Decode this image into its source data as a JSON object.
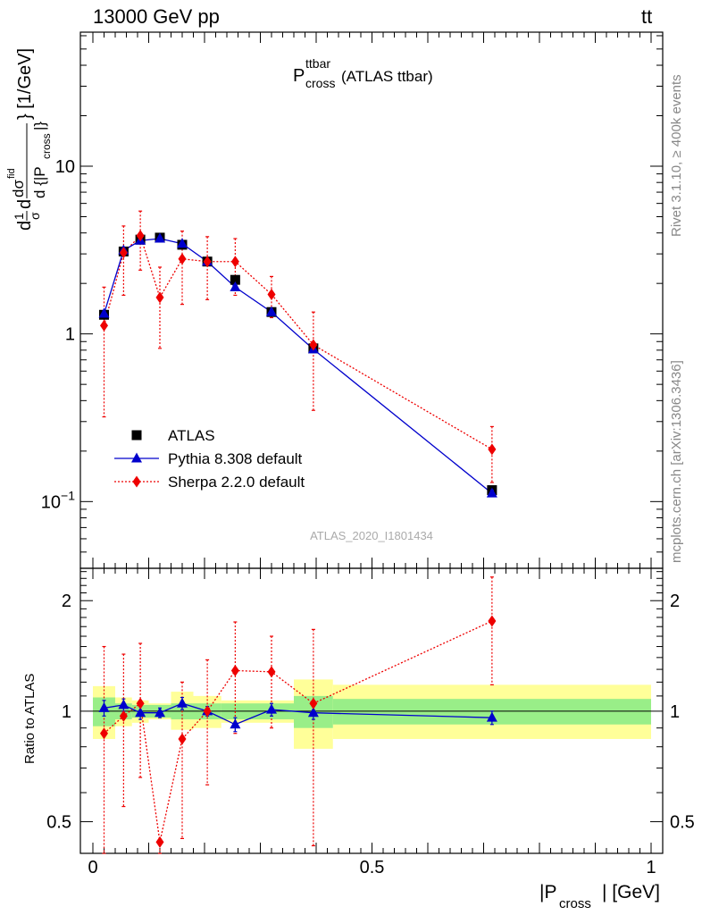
{
  "header": {
    "energy": "13000 GeV pp",
    "process_main": "tt",
    "process_bar": "¯"
  },
  "side_labels": {
    "rivet": "Rivet 3.1.10, ≥ 400k events",
    "mcplots": "mcplots.cern.ch [arXiv:1306.3436]"
  },
  "plot_title": {
    "main": "P",
    "sup": "ttbar",
    "sub": "cross",
    "rest": " (ATLAS ttbar)"
  },
  "watermark": "ATLAS_2020_I1801434",
  "axis_labels": {
    "x_main": "|P",
    "x_sub": "cross",
    "x_rest": "| [GeV]",
    "y_main_left": "d",
    "y_frac_1": "1",
    "y_frac_sigma": "σ",
    "y_d": "d",
    "y_dsigma": "dσ",
    "y_fid": "fid",
    "y_denom": "d {|P",
    "y_denom_sub": "cross",
    "y_denom_close": "|}",
    "y_unit": "} [1/GeV]",
    "y_ratio": "Ratio to ATLAS"
  },
  "chart_data": [
    {
      "type": "line",
      "panel": "main",
      "yscale": "log",
      "xlim": [
        -0.02,
        1.0
      ],
      "ylim": [
        0.04,
        63
      ],
      "x_ticks": [
        0,
        0.5,
        1
      ],
      "y_ticks": [
        {
          "value": 0.1,
          "base": "10",
          "exp": "−1"
        },
        {
          "value": 1,
          "label": "1"
        },
        {
          "value": 10,
          "label": "10"
        }
      ],
      "legend_position": "lower-left",
      "series": [
        {
          "name": "ATLAS",
          "color": "#000000",
          "marker": "square",
          "x": [
            0.02,
            0.055,
            0.085,
            0.12,
            0.16,
            0.205,
            0.255,
            0.32,
            0.395,
            0.715
          ],
          "y": [
            1.3,
            3.1,
            3.65,
            3.75,
            3.4,
            2.7,
            2.1,
            1.35,
            0.82,
            0.117
          ]
        },
        {
          "name": "Pythia 8.308 default",
          "color": "#0000cc",
          "marker": "triangle",
          "line": "solid",
          "x": [
            0.02,
            0.055,
            0.085,
            0.12,
            0.16,
            0.205,
            0.255,
            0.32,
            0.395,
            0.715
          ],
          "y": [
            1.32,
            3.15,
            3.6,
            3.7,
            3.45,
            2.7,
            1.9,
            1.35,
            0.81,
            0.112
          ],
          "err_low": [
            0.05,
            0.1,
            0.1,
            0.1,
            0.1,
            0.08,
            0.07,
            0.05,
            0.03,
            0.005
          ],
          "err_high": [
            0.05,
            0.1,
            0.1,
            0.1,
            0.1,
            0.08,
            0.07,
            0.05,
            0.03,
            0.005
          ]
        },
        {
          "name": "Sherpa 2.2.0 default",
          "color": "#ee0000",
          "marker": "diamond",
          "line": "dotted",
          "x": [
            0.02,
            0.055,
            0.085,
            0.12,
            0.16,
            0.205,
            0.255,
            0.32,
            0.395,
            0.715
          ],
          "y": [
            1.12,
            3.05,
            3.85,
            1.65,
            2.8,
            2.7,
            2.7,
            1.72,
            0.86,
            0.205
          ],
          "y_low": [
            0.32,
            1.7,
            2.4,
            0.82,
            1.5,
            1.6,
            1.7,
            1.25,
            0.35,
            0.13
          ],
          "y_high": [
            1.9,
            4.4,
            5.4,
            2.5,
            4.1,
            3.8,
            3.7,
            2.2,
            1.35,
            0.28
          ]
        }
      ]
    },
    {
      "type": "line",
      "panel": "ratio",
      "yscale": "log",
      "xlim": [
        -0.02,
        1.0
      ],
      "ylim": [
        0.41,
        2.45
      ],
      "x_ticks": [
        0,
        0.5,
        1
      ],
      "y_ticks": [
        0.5,
        1,
        2
      ],
      "bands": {
        "edges": [
          0,
          0.04,
          0.07,
          0.1,
          0.14,
          0.18,
          0.23,
          0.28,
          0.36,
          0.43,
          1.0
        ],
        "green_low": [
          0.91,
          0.95,
          0.96,
          0.96,
          0.95,
          0.95,
          0.95,
          0.95,
          0.9,
          0.92
        ],
        "green_high": [
          1.09,
          1.05,
          1.04,
          1.04,
          1.05,
          1.05,
          1.05,
          1.05,
          1.1,
          1.08
        ],
        "yellow_low": [
          0.84,
          0.91,
          0.93,
          0.95,
          0.89,
          0.9,
          0.93,
          0.93,
          0.79,
          0.84
        ],
        "yellow_high": [
          1.17,
          1.09,
          1.07,
          1.05,
          1.13,
          1.1,
          1.07,
          1.07,
          1.22,
          1.18
        ]
      },
      "series": [
        {
          "name": "Pythia 8.308 default",
          "color": "#0000cc",
          "marker": "triangle",
          "line": "solid",
          "x": [
            0.02,
            0.055,
            0.085,
            0.12,
            0.16,
            0.205,
            0.255,
            0.32,
            0.395,
            0.715
          ],
          "y": [
            1.02,
            1.04,
            0.99,
            0.99,
            1.05,
            1.0,
            0.92,
            1.01,
            0.99,
            0.96
          ],
          "err": [
            0.05,
            0.04,
            0.04,
            0.03,
            0.04,
            0.03,
            0.04,
            0.04,
            0.04,
            0.04
          ]
        },
        {
          "name": "Sherpa 2.2.0 default",
          "color": "#ee0000",
          "marker": "diamond",
          "line": "dotted",
          "x": [
            0.02,
            0.055,
            0.085,
            0.12,
            0.16,
            0.205,
            0.255,
            0.32,
            0.395,
            0.715
          ],
          "y": [
            0.87,
            0.97,
            1.05,
            0.44,
            0.84,
            1.0,
            1.29,
            1.28,
            1.05,
            1.76
          ],
          "y_low": [
            0.41,
            0.55,
            0.66,
            0.41,
            0.45,
            0.63,
            0.87,
            0.9,
            0.43,
            1.18
          ],
          "y_high": [
            1.5,
            1.43,
            1.53,
            0.44,
            1.2,
            1.38,
            1.75,
            1.6,
            1.67,
            2.32
          ]
        }
      ]
    }
  ]
}
